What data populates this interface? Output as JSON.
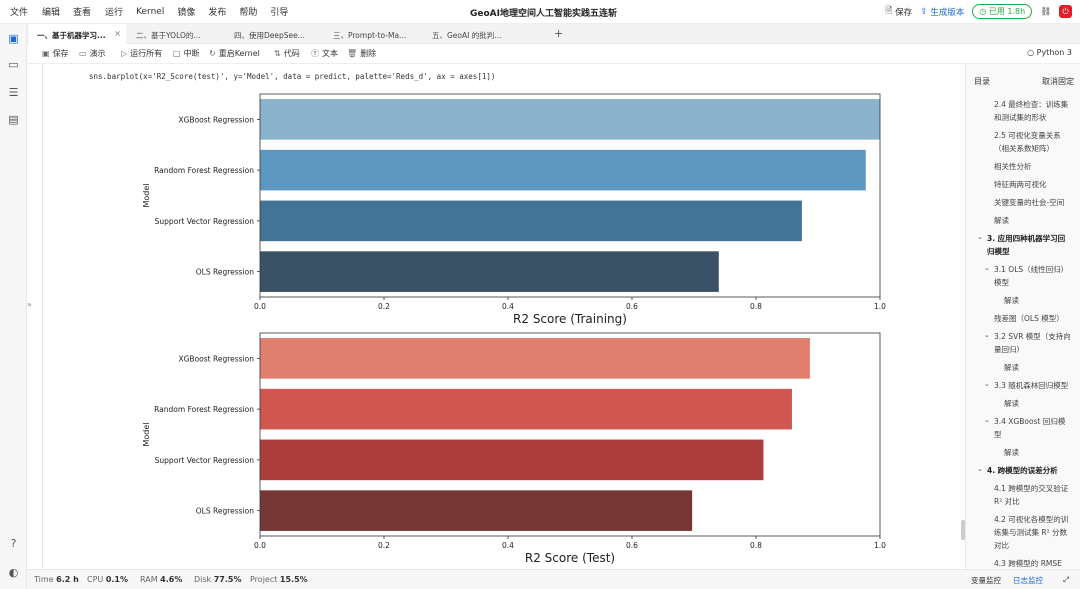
{
  "menu": {
    "items": [
      "文件",
      "编辑",
      "查看",
      "运行",
      "Kernel",
      "镜像",
      "发布",
      "帮助",
      "引导"
    ],
    "title": "GeoAI地理空间人工智能实践五连斩",
    "save_label": "保存",
    "generate_label": "生成版本",
    "usage_label": "已用 1.8h"
  },
  "tabs": [
    {
      "label": "一、基于机器学习...",
      "active": true
    },
    {
      "label": "二、基于YOLO的...",
      "active": false
    },
    {
      "label": "四、使用DeepSee...",
      "active": false
    },
    {
      "label": "三、Prompt-to-Ma...",
      "active": false
    },
    {
      "label": "五、GeoAI 的批判...",
      "active": false
    }
  ],
  "toolbar": {
    "save": "保存",
    "demo": "演示",
    "run_all": "运行所有",
    "interrupt": "中断",
    "restart": "重启Kernel",
    "code": "代码",
    "text": "文本",
    "delete": "删除",
    "kernel": "Python 3"
  },
  "cell": {
    "code": "sns.barplot(x='R2_Score(test)', y='Model', data = predict, palette='Reds_d', ax = axes[1])"
  },
  "chart_data": [
    {
      "type": "bar",
      "orientation": "horizontal",
      "categories": [
        "XGBoost Regression",
        "Random Forest Regression",
        "Support Vector Regression",
        "OLS Regression"
      ],
      "values": [
        1.0,
        0.977,
        0.874,
        0.74
      ],
      "xlabel": "R2 Score (Training)",
      "ylabel": "Model",
      "xlim": [
        0,
        1.0
      ],
      "xticks": [
        "0.0",
        "0.2",
        "0.4",
        "0.6",
        "0.8",
        "1.0"
      ],
      "colors": [
        "#8cb3cd",
        "#5e97bf",
        "#437496",
        "#3a5166"
      ]
    },
    {
      "type": "bar",
      "orientation": "horizontal",
      "categories": [
        "XGBoost Regression",
        "Random Forest Regression",
        "Support Vector Regression",
        "OLS Regression"
      ],
      "values": [
        0.887,
        0.858,
        0.812,
        0.697
      ],
      "xlabel": "R2 Score (Test)",
      "ylabel": "Model",
      "xlim": [
        0,
        1.0
      ],
      "xticks": [
        "0.0",
        "0.2",
        "0.4",
        "0.6",
        "0.8",
        "1.0"
      ],
      "colors": [
        "#e07f6f",
        "#d15650",
        "#ad3c3c",
        "#743736"
      ]
    }
  ],
  "toc": {
    "title": "目录",
    "cancel": "取消固定",
    "items": [
      {
        "text": "2.4 最终检查：训练集",
        "level": 2
      },
      {
        "text": "和测试集的形状",
        "level": 2
      },
      {
        "text": "2.5 可视化变量关系",
        "level": 2
      },
      {
        "text": "（相关系数矩阵）",
        "level": 2
      },
      {
        "text": "相关性分析",
        "level": 2
      },
      {
        "text": "特征两两可视化",
        "level": 2
      },
      {
        "text": "关键变量的社会-空间",
        "level": 2
      },
      {
        "text": "解读",
        "level": 2
      },
      {
        "text": "3. 应用四种机器学习回",
        "level": 1
      },
      {
        "text": "归模型",
        "level": 1
      },
      {
        "text": "3.1 OLS（线性回归）",
        "level": 2
      },
      {
        "text": "模型",
        "level": 2
      },
      {
        "text": "解读",
        "level": 3
      },
      {
        "text": "残差图（OLS 模型）",
        "level": 2
      },
      {
        "text": "3.2 SVR 模型（支持向",
        "level": 2
      },
      {
        "text": "量回归）",
        "level": 2
      },
      {
        "text": "解读",
        "level": 3
      },
      {
        "text": "3.3 随机森林回归模型",
        "level": 2
      },
      {
        "text": "解读",
        "level": 3
      },
      {
        "text": "3.4 XGBoost 回归模",
        "level": 2
      },
      {
        "text": "型",
        "level": 2
      },
      {
        "text": "解读",
        "level": 3
      },
      {
        "text": "4. 跨模型的误差分析",
        "level": 1
      },
      {
        "text": "4.1 跨模型的交叉验证",
        "level": 2
      },
      {
        "text": "R² 对比",
        "level": 2
      },
      {
        "text": "4.2 可视化各模型的训",
        "level": 2
      },
      {
        "text": "练集与测试集 R² 分数",
        "level": 2
      },
      {
        "text": "对比",
        "level": 2
      },
      {
        "text": "4.3 跨模型的 RMSE",
        "level": 2
      },
      {
        "text": "对比",
        "level": 2
      }
    ]
  },
  "status": {
    "time_label": "Time",
    "time_value": "6.2 h",
    "cpu_label": "CPU",
    "cpu_value": "0.1%",
    "ram_label": "RAM",
    "ram_value": "4.6%",
    "disk_label": "Disk",
    "disk_value": "77.5%",
    "project_label": "Project",
    "project_value": "15.5%",
    "var_monitor": "变量监控",
    "log_monitor": "日志监控"
  }
}
